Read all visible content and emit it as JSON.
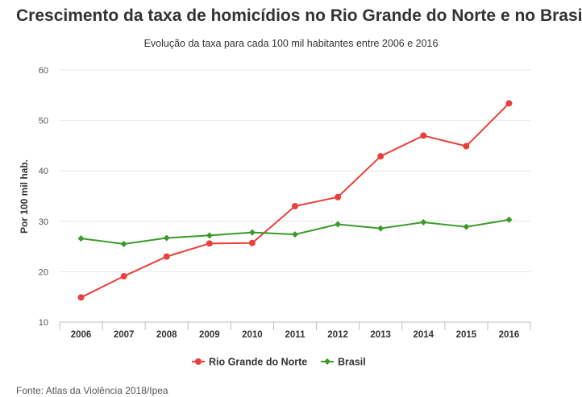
{
  "header": {
    "title": "Crescimento da taxa de homicídios no Rio Grande do Norte e no Brasil",
    "subtitle": "Evolução da taxa para cada 100 mil habitantes entre 2006 e 2016"
  },
  "footer": {
    "source": "Fonte: Atlas da Violência 2018/Ipea"
  },
  "chart_data": {
    "type": "line",
    "title": "Crescimento da taxa de homicídios no Rio Grande do Norte e no Brasil",
    "subtitle": "Evolução da taxa para cada 100 mil habitantes entre 2006 e 2016",
    "xlabel": "",
    "ylabel": "Por 100 mil hab.",
    "categories": [
      "2006",
      "2007",
      "2008",
      "2009",
      "2010",
      "2011",
      "2012",
      "2013",
      "2014",
      "2015",
      "2016"
    ],
    "ylim": [
      10,
      60
    ],
    "yticks": [
      10,
      20,
      30,
      40,
      50,
      60
    ],
    "grid": true,
    "legend_position": "bottom",
    "series": [
      {
        "name": "Rio Grande do Norte",
        "color": "#e8403a",
        "marker": "circle",
        "values": [
          14.9,
          19.1,
          23.0,
          25.6,
          25.7,
          33.0,
          34.8,
          42.9,
          47.0,
          44.9,
          53.4
        ]
      },
      {
        "name": "Brasil",
        "color": "#3a9a2a",
        "marker": "diamond",
        "values": [
          26.6,
          25.5,
          26.7,
          27.2,
          27.8,
          27.4,
          29.4,
          28.6,
          29.8,
          28.9,
          30.3
        ]
      }
    ]
  }
}
